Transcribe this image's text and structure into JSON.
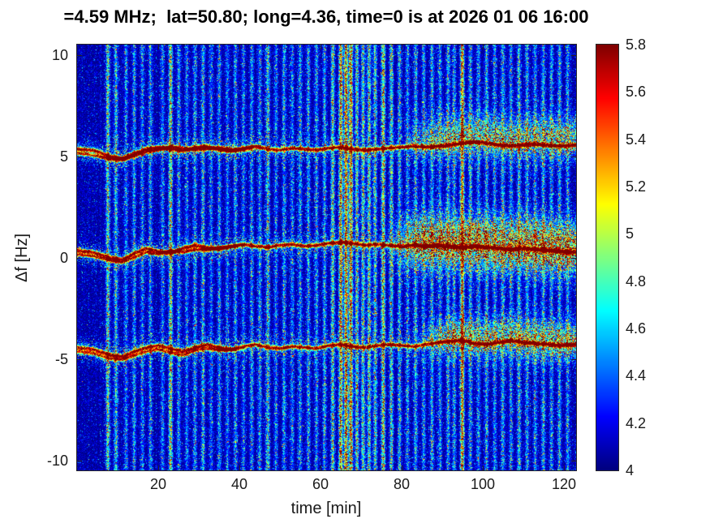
{
  "title": "=4.59 MHz;  lat=50.80; long=4.36, time=0 is at 2026 01 06 16:00",
  "axes": {
    "xlabel": "time [min]",
    "ylabel": "Δf [Hz]",
    "x_ticks": [
      20,
      40,
      60,
      80,
      100,
      120
    ],
    "y_ticks": [
      10,
      5,
      0,
      -5,
      -10
    ],
    "x_range": [
      0,
      123
    ],
    "y_range": [
      -10.5,
      10.5
    ]
  },
  "colorbar": {
    "ticks": [
      "5.8",
      "5.6",
      "5.4",
      "5.2",
      "5",
      "4.8",
      "4.6",
      "4.4",
      "4.2",
      "4"
    ],
    "range": [
      4,
      5.8
    ],
    "colormap": "jet"
  },
  "colors": {
    "background": "#ffffff",
    "axis_text": "#1a1a1a",
    "title_text": "#000000",
    "heatmap_low": "#000080",
    "heatmap_high": "#800000"
  },
  "chart_data": {
    "type": "heatmap",
    "description": "Doppler spectrogram of an HF beacon at 4.59 MHz (Δf in Hz vs time in minutes). Three narrow Doppler traces near +5.3, +0.4 and -4.4 Hz show quasi-periodic wave-like oscillations; after ~80 min the traces broaden into diffuse spread-Doppler clouds. Numerous vertical broadband interference bursts cross the whole frequency band. Jet colormap, log-amplitude scale 4 to 5.8.",
    "x_range": [
      0,
      123
    ],
    "y_range": [
      -10.5,
      10.5
    ],
    "value_range": [
      4,
      5.8
    ],
    "colormap": "jet",
    "background_value": 4.05,
    "traces": [
      {
        "name": "upper-doppler-trace",
        "core": 0.95,
        "sigma": 0.1,
        "halo": 0.22,
        "halo_sigma": 0.45,
        "broaden": {
          "start": 80,
          "amp": 0.5,
          "det": 0.18,
          "sigma": 0.9,
          "offset": 0.4
        },
        "points": [
          [
            0,
            5.35
          ],
          [
            4,
            5.3
          ],
          [
            8,
            5.0
          ],
          [
            11,
            4.9
          ],
          [
            14,
            5.15
          ],
          [
            17,
            5.35
          ],
          [
            20,
            5.45
          ],
          [
            23,
            5.35
          ],
          [
            26,
            5.25
          ],
          [
            29,
            5.45
          ],
          [
            32,
            5.5
          ],
          [
            35,
            5.3
          ],
          [
            38,
            5.25
          ],
          [
            41,
            5.4
          ],
          [
            44,
            5.5
          ],
          [
            47,
            5.35
          ],
          [
            50,
            5.3
          ],
          [
            53,
            5.4
          ],
          [
            56,
            5.35
          ],
          [
            59,
            5.3
          ],
          [
            62,
            5.4
          ],
          [
            65,
            5.45
          ],
          [
            68,
            5.35
          ],
          [
            71,
            5.3
          ],
          [
            74,
            5.35
          ],
          [
            77,
            5.4
          ],
          [
            80,
            5.45
          ],
          [
            83,
            5.5
          ],
          [
            86,
            5.45
          ],
          [
            89,
            5.5
          ],
          [
            92,
            5.55
          ],
          [
            95,
            5.65
          ],
          [
            98,
            5.7
          ],
          [
            101,
            5.65
          ],
          [
            104,
            5.55
          ],
          [
            107,
            5.5
          ],
          [
            110,
            5.55
          ],
          [
            113,
            5.6
          ],
          [
            116,
            5.55
          ],
          [
            119,
            5.5
          ],
          [
            123,
            5.55
          ]
        ]
      },
      {
        "name": "upper-doppler-trace-secondary",
        "core": 0.8,
        "sigma": 0.09,
        "halo": 0.15,
        "halo_sigma": 0.35,
        "fade_end": 46,
        "points": [
          [
            0,
            5.15
          ],
          [
            4,
            5.05
          ],
          [
            8,
            4.85
          ],
          [
            11,
            4.8
          ],
          [
            14,
            5.0
          ],
          [
            17,
            5.2
          ],
          [
            20,
            5.3
          ],
          [
            23,
            5.5
          ],
          [
            26,
            5.4
          ],
          [
            29,
            5.3
          ],
          [
            32,
            5.35
          ],
          [
            35,
            5.45
          ],
          [
            38,
            5.35
          ],
          [
            41,
            5.3
          ],
          [
            45,
            5.35
          ]
        ]
      },
      {
        "name": "center-doppler-trace",
        "core": 0.95,
        "sigma": 0.1,
        "halo": 0.22,
        "halo_sigma": 0.45,
        "broaden": {
          "start": 76,
          "amp": 0.85,
          "det": 0.3,
          "sigma": 1.15,
          "offset": 0.2
        },
        "points": [
          [
            0,
            0.35
          ],
          [
            4,
            0.25
          ],
          [
            8,
            0.0
          ],
          [
            11,
            -0.1
          ],
          [
            14,
            0.2
          ],
          [
            17,
            0.45
          ],
          [
            20,
            0.3
          ],
          [
            23,
            0.2
          ],
          [
            26,
            0.45
          ],
          [
            29,
            0.6
          ],
          [
            32,
            0.5
          ],
          [
            35,
            0.4
          ],
          [
            38,
            0.55
          ],
          [
            41,
            0.65
          ],
          [
            44,
            0.55
          ],
          [
            47,
            0.5
          ],
          [
            50,
            0.6
          ],
          [
            53,
            0.65
          ],
          [
            56,
            0.55
          ],
          [
            59,
            0.6
          ],
          [
            62,
            0.7
          ],
          [
            65,
            0.75
          ],
          [
            68,
            0.7
          ],
          [
            71,
            0.6
          ],
          [
            74,
            0.65
          ],
          [
            77,
            0.6
          ],
          [
            80,
            0.55
          ],
          [
            83,
            0.6
          ],
          [
            86,
            0.55
          ],
          [
            89,
            0.6
          ],
          [
            92,
            0.55
          ],
          [
            95,
            0.5
          ],
          [
            98,
            0.55
          ],
          [
            101,
            0.5
          ],
          [
            104,
            0.45
          ],
          [
            107,
            0.4
          ],
          [
            110,
            0.45
          ],
          [
            113,
            0.4
          ],
          [
            116,
            0.35
          ],
          [
            119,
            0.3
          ],
          [
            123,
            0.25
          ]
        ]
      },
      {
        "name": "center-doppler-trace-secondary",
        "core": 0.78,
        "sigma": 0.09,
        "halo": 0.15,
        "halo_sigma": 0.35,
        "fade_end": 42,
        "points": [
          [
            0,
            0.15
          ],
          [
            4,
            0.05
          ],
          [
            8,
            -0.15
          ],
          [
            11,
            -0.25
          ],
          [
            14,
            0.0
          ],
          [
            17,
            0.25
          ],
          [
            20,
            0.15
          ],
          [
            23,
            0.35
          ],
          [
            26,
            0.25
          ],
          [
            29,
            0.4
          ],
          [
            32,
            0.35
          ],
          [
            35,
            0.5
          ],
          [
            40,
            0.55
          ]
        ]
      },
      {
        "name": "lower-doppler-trace",
        "core": 0.92,
        "sigma": 0.1,
        "halo": 0.22,
        "halo_sigma": 0.45,
        "broaden": {
          "start": 83,
          "amp": 0.55,
          "det": 0.2,
          "sigma": 0.85,
          "offset": 0.25
        },
        "points": [
          [
            0,
            -4.45
          ],
          [
            4,
            -4.55
          ],
          [
            8,
            -4.8
          ],
          [
            11,
            -4.9
          ],
          [
            14,
            -4.65
          ],
          [
            17,
            -4.45
          ],
          [
            20,
            -4.35
          ],
          [
            23,
            -4.5
          ],
          [
            26,
            -4.65
          ],
          [
            29,
            -4.45
          ],
          [
            32,
            -4.3
          ],
          [
            35,
            -4.45
          ],
          [
            38,
            -4.55
          ],
          [
            41,
            -4.4
          ],
          [
            44,
            -4.3
          ],
          [
            47,
            -4.45
          ],
          [
            50,
            -4.5
          ],
          [
            53,
            -4.4
          ],
          [
            56,
            -4.45
          ],
          [
            59,
            -4.5
          ],
          [
            62,
            -4.35
          ],
          [
            65,
            -4.3
          ],
          [
            68,
            -4.4
          ],
          [
            71,
            -4.45
          ],
          [
            74,
            -4.35
          ],
          [
            77,
            -4.3
          ],
          [
            80,
            -4.35
          ],
          [
            83,
            -4.4
          ],
          [
            86,
            -4.3
          ],
          [
            89,
            -4.2
          ],
          [
            92,
            -4.15
          ],
          [
            95,
            -4.1
          ],
          [
            98,
            -4.25
          ],
          [
            101,
            -4.3
          ],
          [
            104,
            -4.2
          ],
          [
            107,
            -4.1
          ],
          [
            110,
            -4.2
          ],
          [
            113,
            -4.25
          ],
          [
            116,
            -4.3
          ],
          [
            119,
            -4.35
          ],
          [
            123,
            -4.3
          ]
        ]
      },
      {
        "name": "lower-doppler-trace-secondary",
        "core": 0.78,
        "sigma": 0.09,
        "halo": 0.15,
        "halo_sigma": 0.35,
        "fade_end": 42,
        "points": [
          [
            0,
            -4.65
          ],
          [
            4,
            -4.75
          ],
          [
            8,
            -5.0
          ],
          [
            11,
            -5.05
          ],
          [
            14,
            -4.85
          ],
          [
            17,
            -4.65
          ],
          [
            20,
            -4.55
          ],
          [
            23,
            -4.7
          ],
          [
            26,
            -4.85
          ],
          [
            29,
            -4.6
          ],
          [
            32,
            -4.5
          ],
          [
            35,
            -4.6
          ],
          [
            40,
            -4.55
          ]
        ]
      }
    ],
    "vertical_interference_lines": [
      [
        7.5,
        0.55
      ],
      [
        9.5,
        0.4
      ],
      [
        12,
        0.25
      ],
      [
        14,
        0.3
      ],
      [
        16,
        0.25
      ],
      [
        18,
        0.3
      ],
      [
        21,
        0.25
      ],
      [
        23,
        0.7
      ],
      [
        25,
        0.3
      ],
      [
        27,
        0.25
      ],
      [
        29,
        0.3
      ],
      [
        31,
        0.35
      ],
      [
        33,
        0.25
      ],
      [
        35,
        0.3
      ],
      [
        37,
        0.25
      ],
      [
        39,
        0.3
      ],
      [
        41,
        0.25
      ],
      [
        43,
        0.3
      ],
      [
        45,
        0.3
      ],
      [
        47,
        0.45
      ],
      [
        49,
        0.25
      ],
      [
        51,
        0.3
      ],
      [
        53,
        0.25
      ],
      [
        55,
        0.3
      ],
      [
        57,
        0.35
      ],
      [
        59,
        0.3
      ],
      [
        61,
        0.35
      ],
      [
        63,
        0.55
      ],
      [
        65,
        0.9
      ],
      [
        66.3,
        1.0
      ],
      [
        67.5,
        0.95
      ],
      [
        69,
        0.55
      ],
      [
        70.5,
        0.5
      ],
      [
        72,
        0.55
      ],
      [
        73.5,
        0.45
      ],
      [
        75.5,
        0.75
      ],
      [
        77.5,
        0.5
      ],
      [
        79.5,
        0.35
      ],
      [
        81.5,
        0.3
      ],
      [
        83.5,
        0.35
      ],
      [
        85.5,
        0.3
      ],
      [
        87.5,
        0.35
      ],
      [
        89.5,
        0.3
      ],
      [
        91.5,
        0.35
      ],
      [
        93,
        0.3
      ],
      [
        95,
        0.95
      ],
      [
        97,
        0.35
      ],
      [
        99,
        0.3
      ],
      [
        101,
        0.35
      ],
      [
        103,
        0.3
      ],
      [
        105,
        0.35
      ],
      [
        107,
        0.3
      ],
      [
        109,
        0.4
      ],
      [
        111,
        0.35
      ],
      [
        113,
        0.3
      ],
      [
        115,
        0.35
      ],
      [
        117,
        0.3
      ],
      [
        119,
        0.35
      ],
      [
        121,
        0.3
      ]
    ]
  }
}
